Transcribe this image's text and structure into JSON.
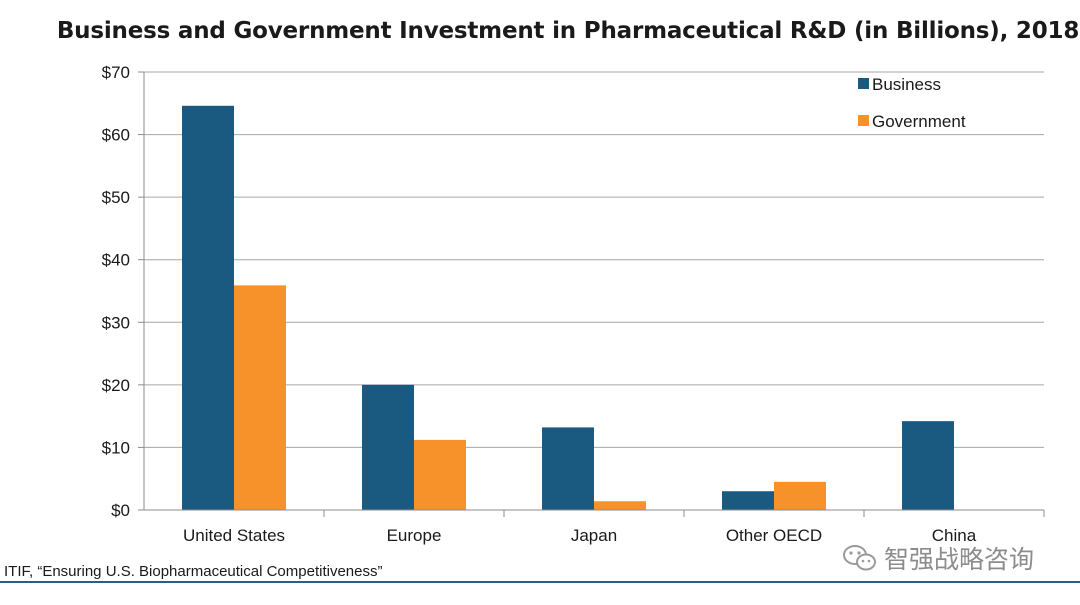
{
  "chart_data": {
    "type": "bar",
    "title": "Business and Government Investment in Pharmaceutical R&D (in Billions), 2018",
    "categories": [
      "United States",
      "Europe",
      "Japan",
      "Other OECD",
      "China"
    ],
    "series": [
      {
        "name": "Business",
        "color": "#1b5a80",
        "values": [
          64.6,
          20.0,
          13.2,
          3.0,
          14.2
        ]
      },
      {
        "name": "Government",
        "color": "#f7922a",
        "values": [
          35.9,
          11.2,
          1.4,
          4.5,
          0
        ]
      }
    ],
    "ylim": [
      0,
      70
    ],
    "yticks": [
      0,
      10,
      20,
      30,
      40,
      50,
      60,
      70
    ],
    "ytick_labels": [
      "$0",
      "$10",
      "$20",
      "$30",
      "$40",
      "$50",
      "$60",
      "$70"
    ],
    "grid": true,
    "legend_position": "top-right",
    "xlabel": "",
    "ylabel": ""
  },
  "source_note": "ITIF, “Ensuring U.S. Biopharmaceutical Competitiveness”",
  "watermark": {
    "text": "智强战略咨询",
    "icon": "wechat-logo"
  }
}
